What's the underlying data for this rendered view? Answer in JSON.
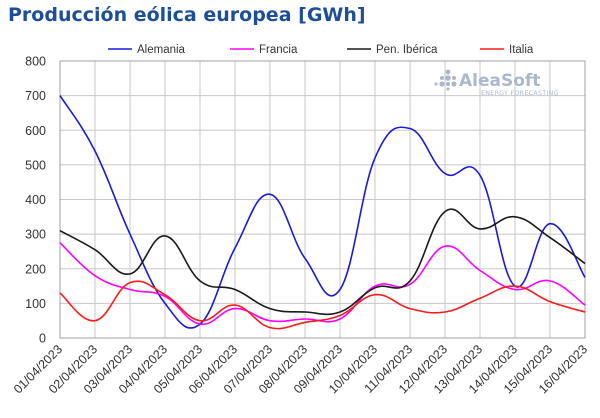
{
  "chart_data": {
    "type": "line",
    "title": "Producción eólica europea [GWh]",
    "xlabel": "",
    "ylabel": "",
    "ylim": [
      0,
      800
    ],
    "yticks": [
      0,
      100,
      200,
      300,
      400,
      500,
      600,
      700,
      800
    ],
    "grid": true,
    "legend_position": "top",
    "categories": [
      "01/04/2023",
      "02/04/2023",
      "03/04/2023",
      "04/04/2023",
      "05/04/2023",
      "06/04/2023",
      "07/04/2023",
      "08/04/2023",
      "09/04/2023",
      "10/04/2023",
      "11/04/2023",
      "12/04/2023",
      "13/04/2023",
      "14/04/2023",
      "15/04/2023",
      "16/04/2023"
    ],
    "series": [
      {
        "name": "Alemania",
        "color": "#1a1adb",
        "values": [
          700,
          540,
          300,
          100,
          40,
          260,
          415,
          230,
          140,
          520,
          605,
          475,
          470,
          150,
          330,
          175
        ]
      },
      {
        "name": "Francia",
        "color": "#ff00ff",
        "values": [
          275,
          180,
          140,
          120,
          40,
          85,
          50,
          55,
          55,
          150,
          155,
          265,
          195,
          140,
          165,
          95
        ]
      },
      {
        "name": "Pen. Ibérica",
        "color": "#1a1a1a",
        "values": [
          310,
          255,
          185,
          295,
          165,
          140,
          85,
          75,
          75,
          145,
          165,
          365,
          315,
          350,
          290,
          215
        ]
      },
      {
        "name": "Italia",
        "color": "#ff1a1a",
        "values": [
          130,
          50,
          160,
          125,
          50,
          95,
          30,
          45,
          65,
          125,
          85,
          75,
          115,
          150,
          105,
          75
        ]
      }
    ]
  },
  "logo": {
    "main": "AleaSoft",
    "sub": "ENERGY FORECASTING"
  }
}
